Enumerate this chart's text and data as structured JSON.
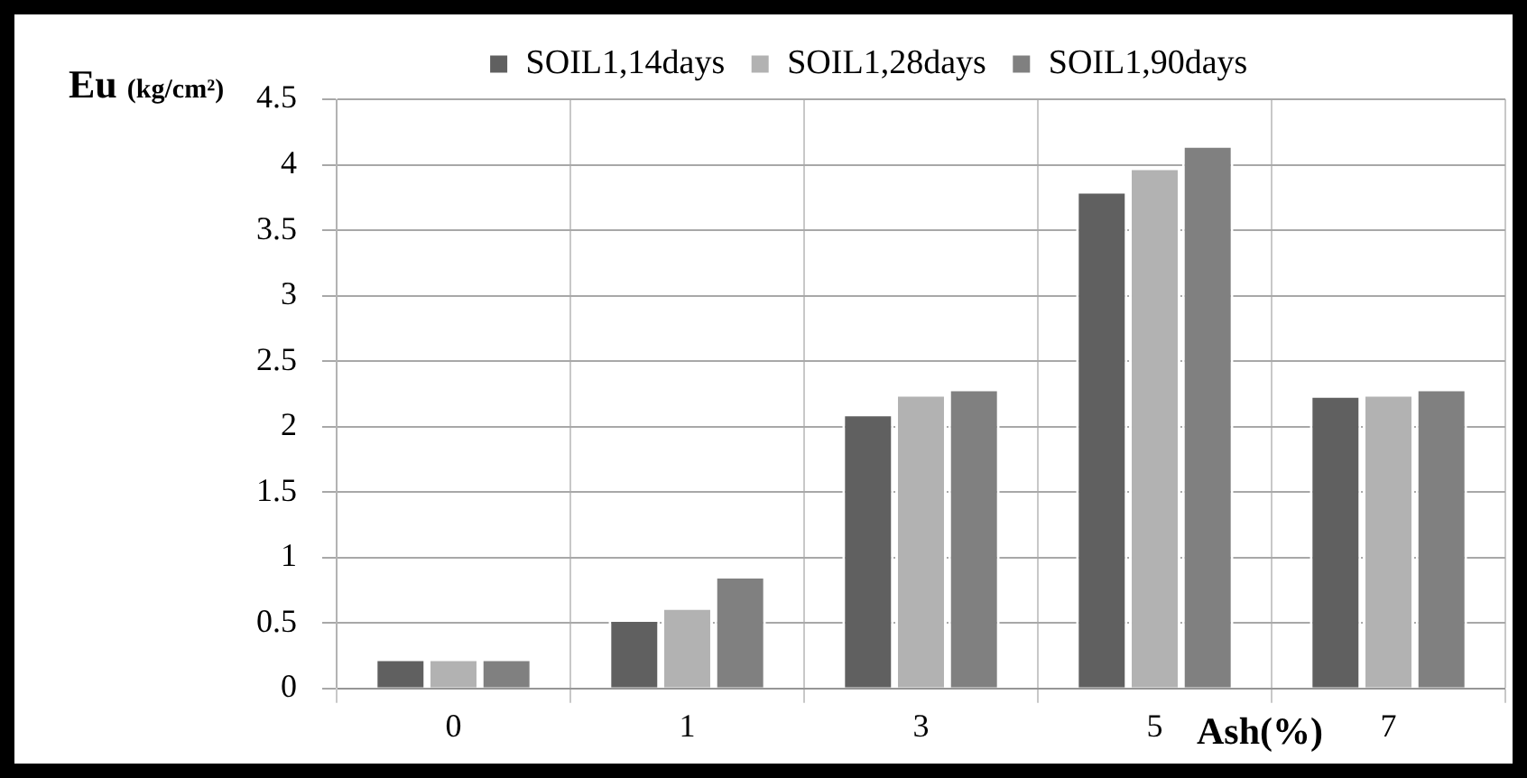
{
  "chart_data": {
    "type": "bar",
    "xlabel": "Ash(%)",
    "ylabel": "Eu (kg/cm²)",
    "categories": [
      "0",
      "1",
      "3",
      "5",
      "7"
    ],
    "series": [
      {
        "name": "SOIL1,14days",
        "color": "#606060",
        "values": [
          0.23,
          0.53,
          2.1,
          3.8,
          2.24
        ]
      },
      {
        "name": "SOIL1,28days",
        "color": "#b2b2b2",
        "values": [
          0.23,
          0.62,
          2.25,
          3.98,
          2.25
        ]
      },
      {
        "name": "SOIL1,90days",
        "color": "#808080",
        "values": [
          0.23,
          0.86,
          2.29,
          4.15,
          2.29
        ]
      }
    ],
    "ylim": [
      0,
      4.5
    ],
    "yticks": [
      0,
      0.5,
      1,
      1.5,
      2,
      2.5,
      3,
      3.5,
      4,
      4.5
    ],
    "grid": true,
    "legend": "top"
  }
}
